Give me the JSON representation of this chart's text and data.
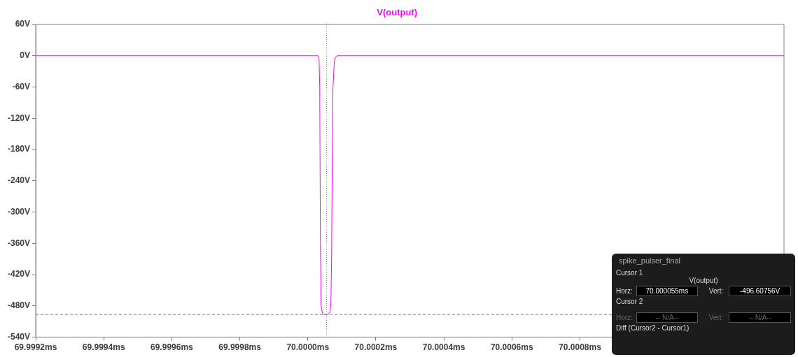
{
  "chart_data": {
    "type": "line",
    "legend": "top",
    "xlim": [
      69.9992,
      70.0014
    ],
    "xticks": [
      {
        "value": 69.9992,
        "label": "69.9992ms"
      },
      {
        "value": 69.9994,
        "label": "69.9994ms"
      },
      {
        "value": 69.9996,
        "label": "69.9996ms"
      },
      {
        "value": 69.9998,
        "label": "69.9998ms"
      },
      {
        "value": 70.0,
        "label": "70.0000ms"
      },
      {
        "value": 70.0002,
        "label": "70.0002ms"
      },
      {
        "value": 70.0004,
        "label": "70.0004ms"
      },
      {
        "value": 70.0006,
        "label": "70.0006ms"
      },
      {
        "value": 70.0008,
        "label": "70.0008ms"
      }
    ],
    "ylim": [
      -540,
      60
    ],
    "yticks": [
      {
        "value": 60,
        "label": "60V"
      },
      {
        "value": 0,
        "label": "0V"
      },
      {
        "value": -60,
        "label": "-60V"
      },
      {
        "value": -120,
        "label": "-120V"
      },
      {
        "value": -180,
        "label": "-180V"
      },
      {
        "value": -240,
        "label": "-240V"
      },
      {
        "value": -300,
        "label": "-300V"
      },
      {
        "value": -360,
        "label": "-360V"
      },
      {
        "value": -420,
        "label": "-420V"
      },
      {
        "value": -480,
        "label": "-480V"
      },
      {
        "value": -540,
        "label": "-540V"
      }
    ],
    "grid": false,
    "marker": "none",
    "line_style": "solid",
    "series": [
      {
        "name": "V(output)",
        "color": "#ff00ff",
        "x": [
          69.9992,
          70.00003,
          70.000033,
          70.000035,
          70.000037,
          70.000039,
          70.000043,
          70.00005,
          70.000055,
          70.000062,
          70.000066,
          70.000068,
          70.00007,
          70.000072,
          70.000074,
          70.000078,
          70.000082,
          70.000087,
          70.0014
        ],
        "values": [
          0,
          0,
          -5,
          -60,
          -360,
          -480,
          -494,
          -497,
          -497,
          -495,
          -490,
          -470,
          -380,
          -180,
          -60,
          -10,
          -2,
          0,
          0
        ]
      }
    ],
    "ref_lines": [
      {
        "axis": "x",
        "value": 70.000055,
        "color": "#808080",
        "line_style": "dotted"
      },
      {
        "axis": "y",
        "value": -496.60756,
        "color": "#808080",
        "line_style": "dashed"
      }
    ],
    "annotations": [
      "spike_pulser_final",
      "Cursor 1",
      "V(output)",
      "Horz:",
      "70.000055ms",
      "Vert:",
      "-496.60756V",
      "Cursor 2",
      "Horz:",
      "-- N/A--",
      "Vert:",
      "-- N/A--",
      "Diff (Cursor2 - Cursor1)"
    ]
  }
}
